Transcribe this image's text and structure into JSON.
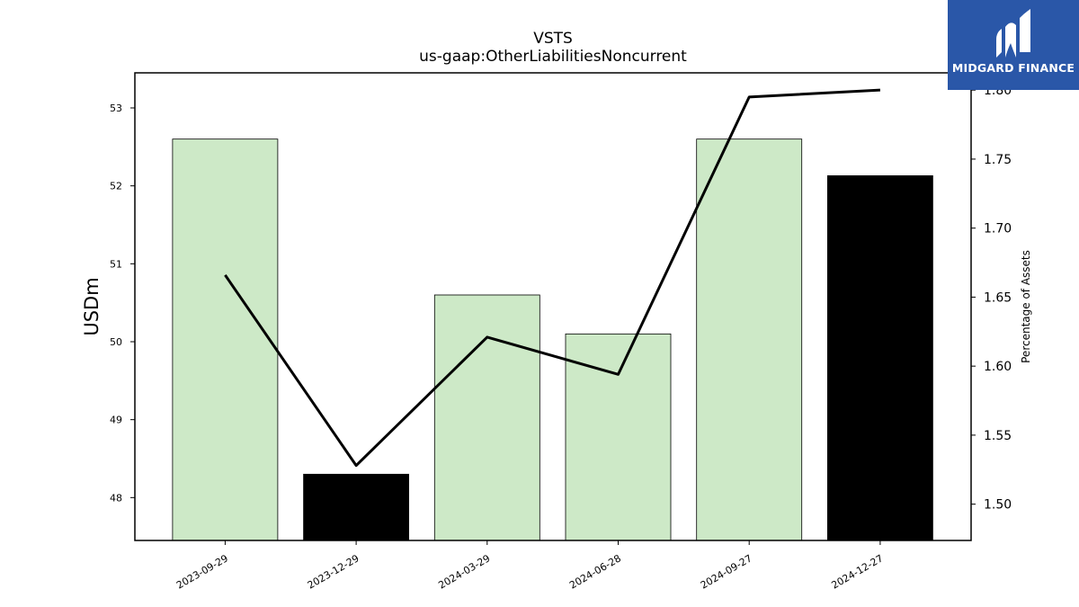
{
  "chart_data": {
    "type": "bar",
    "title": "VSTS",
    "subtitle": "us-gaap:OtherLiabilitiesNoncurrent",
    "ylabel": "USDm",
    "y2label": "Percentage of Assets",
    "categories": [
      "2023-09-29",
      "2023-12-29",
      "2024-03-29",
      "2024-06-28",
      "2024-09-27",
      "2024-12-27"
    ],
    "values": [
      52.6,
      48.3,
      50.6,
      50.1,
      52.6,
      52.13
    ],
    "bar_colors": [
      "#cde9c7",
      "#000000",
      "#cde9c7",
      "#cde9c7",
      "#cde9c7",
      "#000000"
    ],
    "line_values": [
      1.666,
      1.528,
      1.621,
      1.594,
      1.795,
      1.8
    ],
    "line_color": "#000000",
    "ylim": [
      47.45,
      53.45
    ],
    "y2lim": [
      1.4737,
      1.8125
    ],
    "yticks": [
      48,
      49,
      50,
      51,
      52,
      53
    ],
    "y2ticks": [
      "1.50",
      "1.55",
      "1.60",
      "1.65",
      "1.70",
      "1.75",
      "1.80"
    ],
    "grid": false
  },
  "logo": {
    "text": "MIDGARD FINANCE",
    "bg_color": "#2a57a8"
  }
}
